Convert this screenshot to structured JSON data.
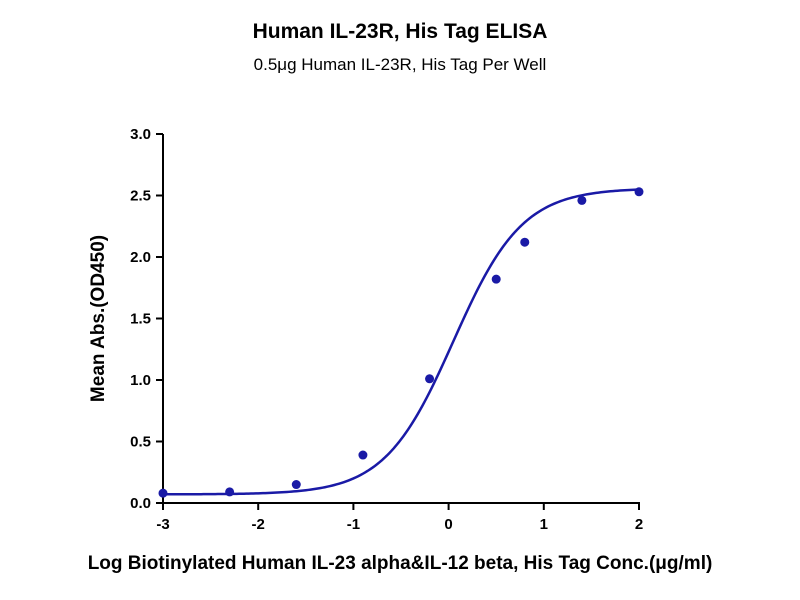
{
  "chart_data": {
    "type": "scatter",
    "title": "Human IL-23R, His Tag ELISA",
    "subtitle": "0.5μg Human IL-23R, His Tag Per Well",
    "xlabel": "Log Biotinylated Human IL-23 alpha&IL-12 beta, His Tag Conc.(μg/ml)",
    "ylabel": "Mean Abs.(OD450)",
    "xlim": [
      -3,
      2
    ],
    "ylim": [
      0,
      3
    ],
    "x_ticks": [
      "-3",
      "-2",
      "-1",
      "0",
      "1",
      "2"
    ],
    "y_ticks": [
      "0.0",
      "0.5",
      "1.0",
      "1.5",
      "2.0",
      "2.5",
      "3.0"
    ],
    "series": [
      {
        "x": [
          -3.0,
          -2.3,
          -1.6,
          -0.9,
          -0.2,
          0.5,
          0.8,
          1.4,
          2.0
        ],
        "y": [
          0.08,
          0.09,
          0.15,
          0.39,
          1.01,
          1.82,
          2.12,
          2.46,
          2.53
        ],
        "color": "#1a1aa6"
      }
    ],
    "fit": {
      "model": "4PL",
      "bottom": 0.07,
      "top": 2.56,
      "logEC50": 0.05,
      "hill": 1.2,
      "color": "#1a1aa6"
    },
    "grid": false,
    "legend": "none"
  }
}
